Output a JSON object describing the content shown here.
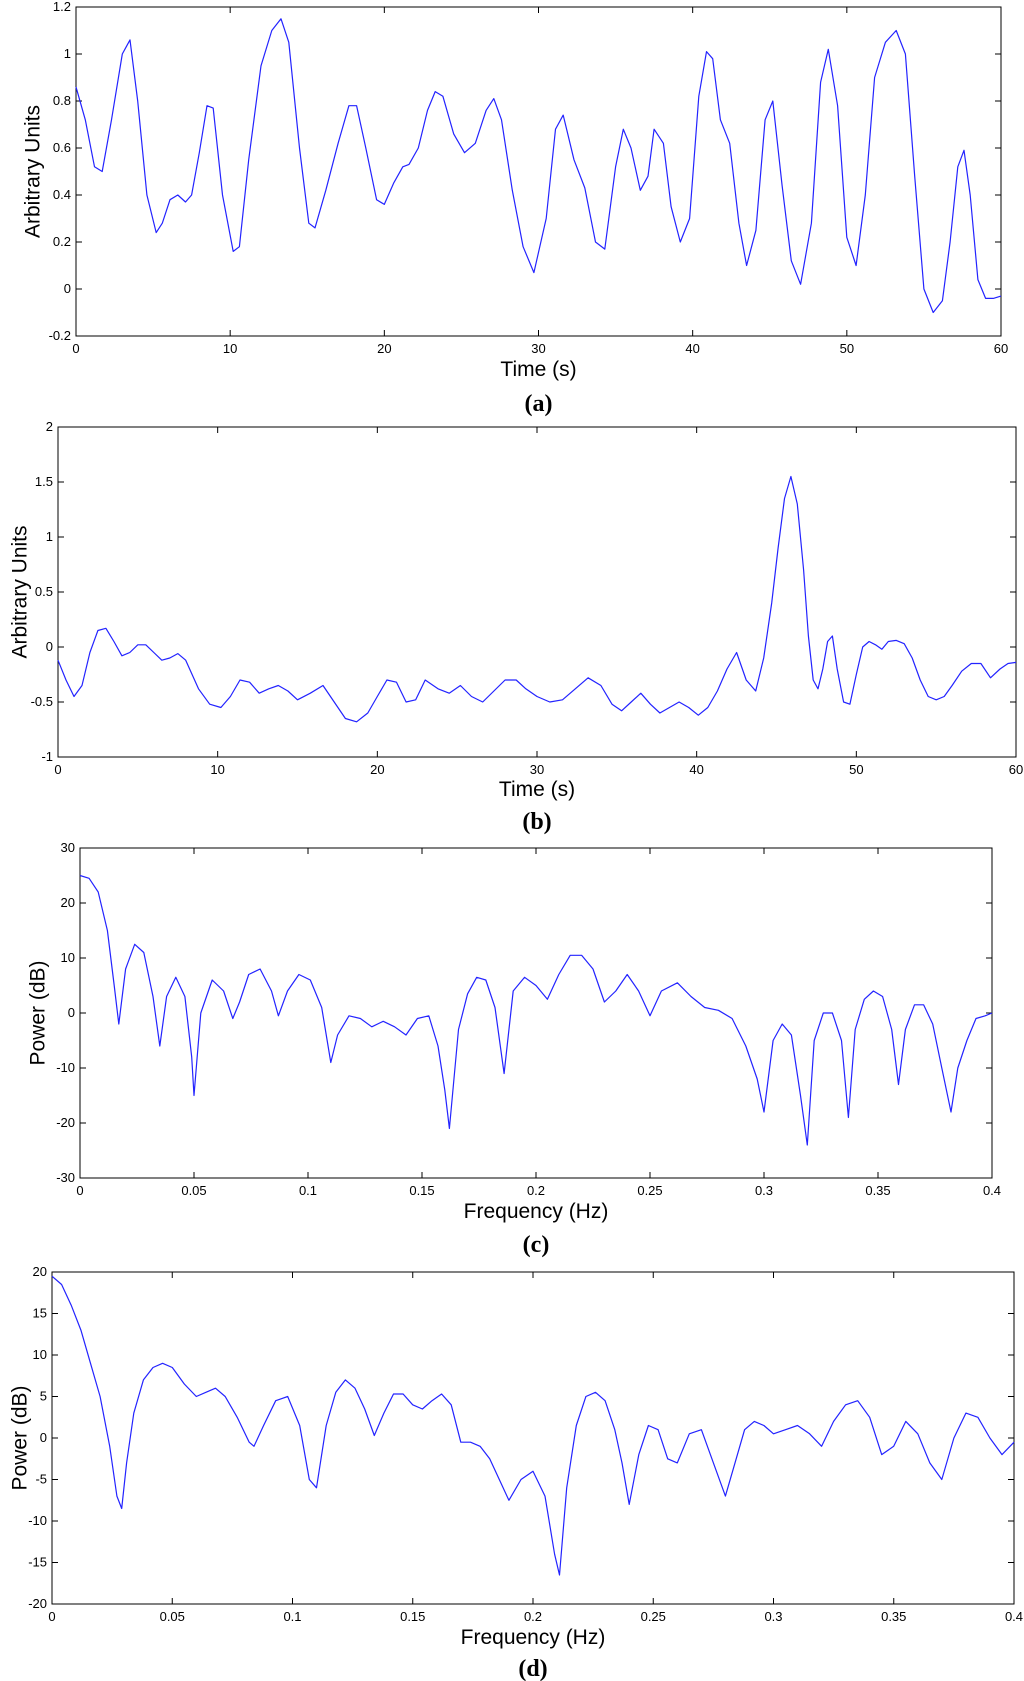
{
  "chart_data": [
    {
      "type": "line",
      "panel_label": "(a)",
      "xlabel": "Time (s)",
      "ylabel": "Arbitrary Units",
      "xlim": [
        0,
        60
      ],
      "ylim": [
        -0.2,
        1.2
      ],
      "xticks": [
        0,
        10,
        20,
        30,
        40,
        50,
        60
      ],
      "yticks": [
        -0.2,
        0,
        0.2,
        0.4,
        0.6,
        0.8,
        1,
        1.2
      ],
      "ytick_labels": [
        "-0.2",
        "0",
        "0.2",
        "0.4",
        "0.6",
        "0.8",
        "1",
        "1.2"
      ],
      "grid": false,
      "line_color": "#2323ff",
      "series": [
        {
          "x": [
            0,
            0.6,
            1.2,
            1.7,
            2.3,
            3.0,
            3.5,
            4.0,
            4.6,
            5.2,
            5.6,
            6.1,
            6.6,
            7.1,
            7.5,
            8.0,
            8.5,
            8.9,
            9.5,
            10.2,
            10.6,
            11.2,
            12.0,
            12.7,
            13.3,
            13.8,
            14.5,
            15.1,
            15.5,
            16.2,
            17.0,
            17.7,
            18.2,
            18.8,
            19.5,
            20.0,
            20.6,
            21.2,
            21.6,
            22.2,
            22.8,
            23.3,
            23.8,
            24.5,
            25.2,
            25.9,
            26.6,
            27.1,
            27.6,
            28.3,
            29.0,
            29.7,
            30.5,
            31.1,
            31.6,
            32.3,
            33.0,
            33.7,
            34.3,
            35.0,
            35.5,
            36.0,
            36.6,
            37.1,
            37.5,
            38.1,
            38.6,
            39.2,
            39.8,
            40.4,
            40.9,
            41.3,
            41.8,
            42.4,
            43.0,
            43.5,
            44.1,
            44.7,
            45.2,
            45.8,
            46.4,
            47.0,
            47.7,
            48.3,
            48.8,
            49.4,
            50.0,
            50.6,
            51.2,
            51.8,
            52.5,
            53.2,
            53.8,
            54.4,
            55.0,
            55.6,
            56.2,
            56.7,
            57.2,
            57.6,
            58.0,
            58.5,
            59.0,
            59.5,
            60.0
          ],
          "y": [
            0.86,
            0.72,
            0.52,
            0.5,
            0.72,
            1.0,
            1.06,
            0.8,
            0.4,
            0.24,
            0.28,
            0.38,
            0.4,
            0.37,
            0.4,
            0.58,
            0.78,
            0.77,
            0.4,
            0.16,
            0.18,
            0.55,
            0.95,
            1.1,
            1.15,
            1.05,
            0.6,
            0.28,
            0.26,
            0.42,
            0.62,
            0.78,
            0.78,
            0.6,
            0.38,
            0.36,
            0.45,
            0.52,
            0.53,
            0.6,
            0.76,
            0.84,
            0.82,
            0.66,
            0.58,
            0.62,
            0.76,
            0.81,
            0.72,
            0.42,
            0.18,
            0.07,
            0.3,
            0.68,
            0.74,
            0.55,
            0.43,
            0.2,
            0.17,
            0.52,
            0.68,
            0.6,
            0.42,
            0.48,
            0.68,
            0.62,
            0.35,
            0.2,
            0.3,
            0.82,
            1.01,
            0.98,
            0.72,
            0.62,
            0.28,
            0.1,
            0.25,
            0.72,
            0.8,
            0.44,
            0.12,
            0.02,
            0.28,
            0.88,
            1.02,
            0.78,
            0.22,
            0.1,
            0.4,
            0.9,
            1.05,
            1.1,
            1.0,
            0.48,
            0.0,
            -0.1,
            -0.05,
            0.2,
            0.52,
            0.59,
            0.4,
            0.04,
            -0.04,
            -0.04,
            -0.03
          ]
        }
      ]
    },
    {
      "type": "line",
      "panel_label": "(b)",
      "xlabel": "Time (s)",
      "ylabel": "Arbitrary Units",
      "xlim": [
        0,
        60
      ],
      "ylim": [
        -1,
        2
      ],
      "xticks": [
        0,
        10,
        20,
        30,
        40,
        50,
        60
      ],
      "yticks": [
        -1,
        -0.5,
        0,
        0.5,
        1,
        1.5,
        2
      ],
      "ytick_labels": [
        "-1",
        "-0.5",
        "0",
        "0.5",
        "1",
        "1.5",
        "2"
      ],
      "grid": false,
      "line_color": "#2323ff",
      "series": [
        {
          "x": [
            0,
            0.5,
            1.0,
            1.5,
            2.0,
            2.5,
            3.0,
            3.5,
            4.0,
            4.5,
            5.0,
            5.5,
            6.0,
            6.5,
            7.0,
            7.5,
            8.0,
            8.8,
            9.5,
            10.2,
            10.8,
            11.4,
            12.0,
            12.6,
            13.2,
            13.8,
            14.4,
            15.0,
            15.8,
            16.6,
            17.3,
            18.0,
            18.7,
            19.4,
            20.0,
            20.6,
            21.2,
            21.8,
            22.4,
            23.0,
            23.8,
            24.5,
            25.2,
            25.9,
            26.6,
            27.3,
            28.0,
            28.7,
            29.3,
            30.0,
            30.8,
            31.6,
            32.4,
            33.2,
            34.0,
            34.7,
            35.3,
            35.9,
            36.5,
            37.1,
            37.7,
            38.3,
            38.9,
            39.5,
            40.1,
            40.7,
            41.3,
            41.9,
            42.5,
            43.1,
            43.7,
            44.2,
            44.7,
            45.1,
            45.5,
            45.9,
            46.3,
            46.7,
            47.0,
            47.3,
            47.6,
            47.9,
            48.2,
            48.5,
            48.8,
            49.2,
            49.6,
            50.0,
            50.4,
            50.8,
            51.2,
            51.6,
            52.0,
            52.5,
            53.0,
            53.5,
            54.0,
            54.5,
            55.0,
            55.5,
            56.0,
            56.6,
            57.2,
            57.8,
            58.4,
            59.0,
            59.5,
            60.0
          ],
          "y": [
            -0.12,
            -0.3,
            -0.45,
            -0.35,
            -0.05,
            0.15,
            0.17,
            0.05,
            -0.08,
            -0.05,
            0.02,
            0.02,
            -0.05,
            -0.12,
            -0.1,
            -0.06,
            -0.12,
            -0.38,
            -0.52,
            -0.55,
            -0.45,
            -0.3,
            -0.32,
            -0.42,
            -0.38,
            -0.35,
            -0.4,
            -0.48,
            -0.42,
            -0.35,
            -0.5,
            -0.65,
            -0.68,
            -0.6,
            -0.45,
            -0.3,
            -0.32,
            -0.5,
            -0.48,
            -0.3,
            -0.38,
            -0.42,
            -0.35,
            -0.45,
            -0.5,
            -0.4,
            -0.3,
            -0.3,
            -0.38,
            -0.45,
            -0.5,
            -0.48,
            -0.38,
            -0.28,
            -0.35,
            -0.52,
            -0.58,
            -0.5,
            -0.42,
            -0.52,
            -0.6,
            -0.55,
            -0.5,
            -0.55,
            -0.62,
            -0.55,
            -0.4,
            -0.2,
            -0.05,
            -0.3,
            -0.4,
            -0.1,
            0.4,
            0.9,
            1.35,
            1.55,
            1.3,
            0.7,
            0.1,
            -0.3,
            -0.38,
            -0.2,
            0.05,
            0.1,
            -0.2,
            -0.5,
            -0.52,
            -0.25,
            0.0,
            0.05,
            0.02,
            -0.02,
            0.05,
            0.06,
            0.03,
            -0.1,
            -0.3,
            -0.45,
            -0.48,
            -0.45,
            -0.35,
            -0.22,
            -0.15,
            -0.15,
            -0.28,
            -0.2,
            -0.15,
            -0.14
          ]
        }
      ]
    },
    {
      "type": "line",
      "panel_label": "(c)",
      "xlabel": "Frequency (Hz)",
      "ylabel": "Power (dB)",
      "xlim": [
        0,
        0.4
      ],
      "ylim": [
        -30,
        30
      ],
      "xticks": [
        0,
        0.05,
        0.1,
        0.15,
        0.2,
        0.25,
        0.3,
        0.35,
        0.4
      ],
      "yticks": [
        -30,
        -20,
        -10,
        0,
        10,
        20,
        30
      ],
      "ytick_labels": [
        "-30",
        "-20",
        "-10",
        "0",
        "10",
        "20",
        "30"
      ],
      "grid": false,
      "line_color": "#2323ff",
      "series": [
        {
          "x": [
            0,
            0.004,
            0.008,
            0.012,
            0.015,
            0.017,
            0.02,
            0.024,
            0.028,
            0.032,
            0.035,
            0.038,
            0.042,
            0.046,
            0.049,
            0.05,
            0.053,
            0.058,
            0.063,
            0.067,
            0.07,
            0.074,
            0.079,
            0.084,
            0.087,
            0.091,
            0.096,
            0.101,
            0.106,
            0.11,
            0.113,
            0.118,
            0.123,
            0.128,
            0.133,
            0.138,
            0.143,
            0.148,
            0.153,
            0.157,
            0.16,
            0.162,
            0.166,
            0.17,
            0.174,
            0.178,
            0.182,
            0.186,
            0.19,
            0.195,
            0.2,
            0.205,
            0.21,
            0.215,
            0.22,
            0.225,
            0.23,
            0.235,
            0.24,
            0.245,
            0.25,
            0.255,
            0.262,
            0.268,
            0.274,
            0.28,
            0.286,
            0.292,
            0.297,
            0.3,
            0.304,
            0.308,
            0.312,
            0.316,
            0.319,
            0.322,
            0.326,
            0.33,
            0.334,
            0.337,
            0.34,
            0.344,
            0.348,
            0.352,
            0.356,
            0.359,
            0.362,
            0.366,
            0.37,
            0.374,
            0.378,
            0.382,
            0.385,
            0.389,
            0.393,
            0.397,
            0.4
          ],
          "y": [
            25,
            24.5,
            22,
            15,
            5,
            -2,
            8,
            12.5,
            11,
            3,
            -6,
            3,
            6.5,
            3,
            -8,
            -15,
            0,
            6,
            4,
            -1,
            2,
            7,
            8,
            4,
            -0.5,
            4,
            7,
            6,
            1,
            -9,
            -4,
            -0.5,
            -1,
            -2.5,
            -1.5,
            -2.5,
            -4,
            -1,
            -0.5,
            -6,
            -14,
            -21,
            -3,
            3.5,
            6.5,
            6,
            1,
            -11,
            4,
            6.5,
            5,
            2.5,
            7,
            10.5,
            10.5,
            8,
            2,
            4,
            7,
            4,
            -0.5,
            4,
            5.5,
            3,
            1,
            0.5,
            -1,
            -6,
            -12,
            -18,
            -5,
            -2,
            -4,
            -15,
            -24,
            -5,
            0,
            0,
            -5,
            -19,
            -3,
            2.5,
            4,
            3,
            -3,
            -13,
            -3,
            1.5,
            1.5,
            -2,
            -10,
            -18,
            -10,
            -5,
            -1,
            -0.5,
            0
          ]
        }
      ]
    },
    {
      "type": "line",
      "panel_label": "(d)",
      "xlabel": "Frequency (Hz)",
      "ylabel": "Power (dB)",
      "xlim": [
        0,
        0.4
      ],
      "ylim": [
        -20,
        20
      ],
      "xticks": [
        0,
        0.05,
        0.1,
        0.15,
        0.2,
        0.25,
        0.3,
        0.35,
        0.4
      ],
      "yticks": [
        -20,
        -15,
        -10,
        -5,
        0,
        5,
        10,
        15,
        20
      ],
      "ytick_labels": [
        "-20",
        "-15",
        "-10",
        "-5",
        "0",
        "5",
        "10",
        "15",
        "20"
      ],
      "grid": false,
      "line_color": "#2323ff",
      "series": [
        {
          "x": [
            0,
            0.004,
            0.008,
            0.012,
            0.016,
            0.02,
            0.024,
            0.027,
            0.029,
            0.031,
            0.034,
            0.038,
            0.042,
            0.046,
            0.05,
            0.055,
            0.06,
            0.064,
            0.068,
            0.072,
            0.077,
            0.082,
            0.084,
            0.088,
            0.093,
            0.098,
            0.103,
            0.107,
            0.11,
            0.114,
            0.118,
            0.122,
            0.126,
            0.13,
            0.134,
            0.138,
            0.142,
            0.146,
            0.15,
            0.154,
            0.158,
            0.162,
            0.166,
            0.17,
            0.174,
            0.178,
            0.182,
            0.186,
            0.19,
            0.195,
            0.2,
            0.205,
            0.209,
            0.211,
            0.214,
            0.218,
            0.222,
            0.226,
            0.23,
            0.234,
            0.237,
            0.24,
            0.244,
            0.248,
            0.252,
            0.256,
            0.26,
            0.265,
            0.27,
            0.275,
            0.28,
            0.284,
            0.288,
            0.292,
            0.296,
            0.3,
            0.305,
            0.31,
            0.315,
            0.32,
            0.325,
            0.33,
            0.335,
            0.34,
            0.345,
            0.35,
            0.355,
            0.36,
            0.365,
            0.37,
            0.375,
            0.38,
            0.385,
            0.39,
            0.395,
            0.4
          ],
          "y": [
            19.5,
            18.5,
            16,
            13,
            9,
            5,
            -1,
            -7,
            -8.5,
            -3,
            3,
            7,
            8.5,
            9,
            8.5,
            6.5,
            5,
            5.5,
            6,
            5,
            2.5,
            -0.5,
            -1,
            1.5,
            4.5,
            5,
            1.5,
            -5,
            -6,
            1.5,
            5.5,
            7,
            6,
            3.5,
            0.3,
            3,
            5.3,
            5.3,
            4,
            3.5,
            4.5,
            5.3,
            4,
            -0.5,
            -0.5,
            -1,
            -2.5,
            -5,
            -7.5,
            -5,
            -4,
            -7,
            -14,
            -16.5,
            -6,
            1.5,
            5,
            5.5,
            4.5,
            1,
            -3,
            -8,
            -2,
            1.5,
            1,
            -2.5,
            -3,
            0.5,
            1,
            -3,
            -7,
            -3,
            1,
            2,
            1.5,
            0.5,
            1,
            1.5,
            0.5,
            -1,
            2,
            4,
            4.5,
            2.5,
            -2,
            -1,
            2,
            0.5,
            -3,
            -5,
            0,
            3,
            2.5,
            0,
            -2,
            -0.5
          ]
        }
      ]
    }
  ]
}
